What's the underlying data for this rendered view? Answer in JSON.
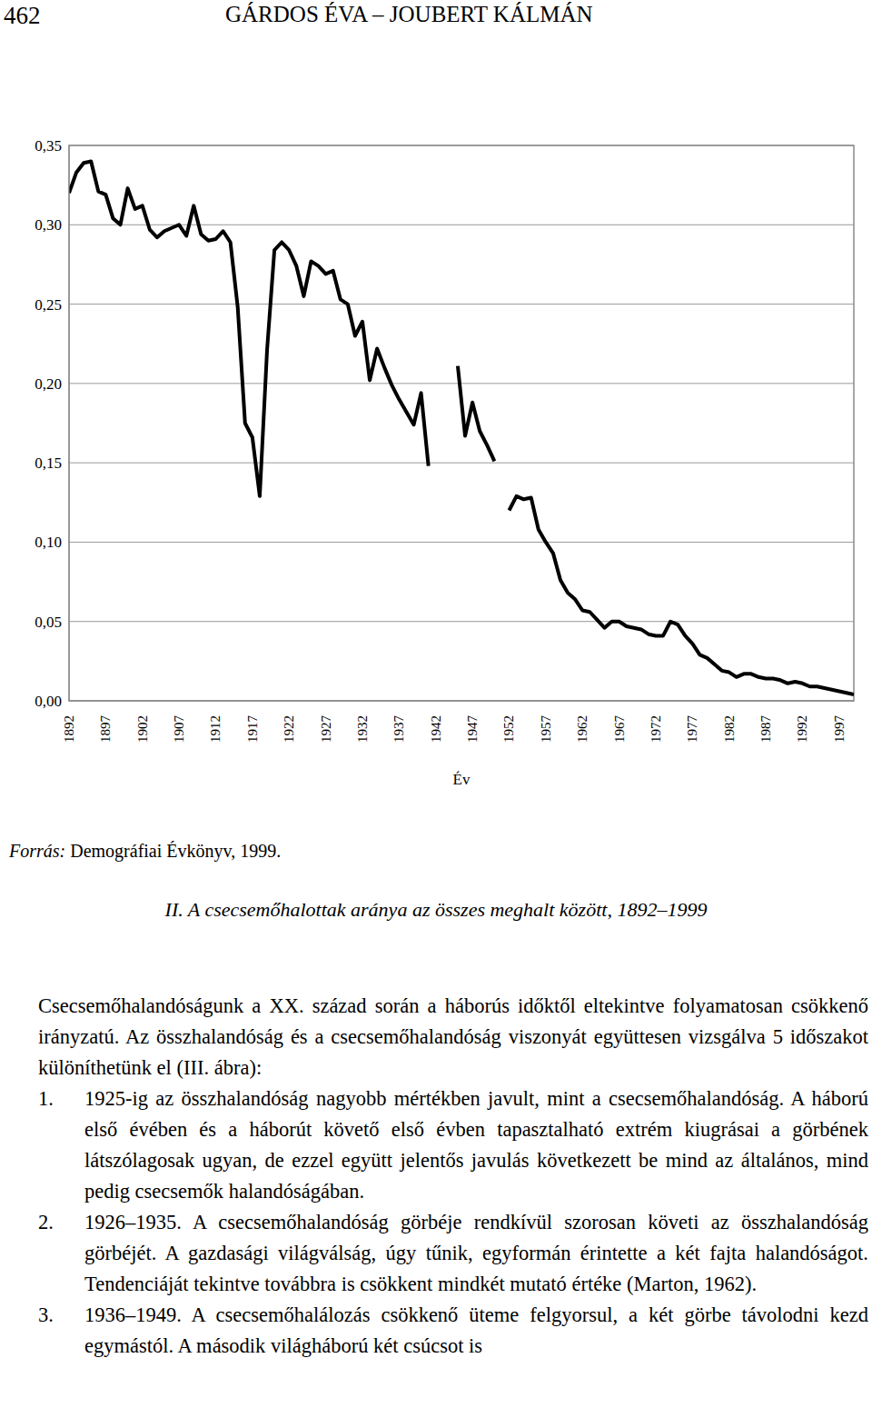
{
  "header": {
    "page": "462",
    "authors": "GÁRDOS ÉVA – JOUBERT KÁLMÁN"
  },
  "chart_data": {
    "type": "line",
    "xlabel": "Év",
    "color": "#000000",
    "grid": true,
    "xlim": [
      1892,
      1999
    ],
    "xticks": [
      1892,
      1897,
      1902,
      1907,
      1912,
      1917,
      1922,
      1927,
      1932,
      1937,
      1942,
      1947,
      1952,
      1957,
      1962,
      1967,
      1972,
      1977,
      1982,
      1987,
      1992,
      1997
    ],
    "ylim": [
      0,
      0.35
    ],
    "yticks": [
      {
        "value": 0,
        "label": "0,00"
      },
      {
        "value": 0.05,
        "label": "0,05"
      },
      {
        "value": 0.1,
        "label": "0,10"
      },
      {
        "value": 0.15,
        "label": "0,15"
      },
      {
        "value": 0.2,
        "label": "0,20"
      },
      {
        "value": 0.25,
        "label": "0,25"
      },
      {
        "value": 0.3,
        "label": "0,30"
      },
      {
        "value": 0.35,
        "label": "0,35"
      }
    ],
    "x": [
      1892,
      1893,
      1894,
      1895,
      1896,
      1897,
      1898,
      1899,
      1900,
      1901,
      1902,
      1903,
      1904,
      1905,
      1906,
      1907,
      1908,
      1909,
      1910,
      1911,
      1912,
      1913,
      1914,
      1915,
      1916,
      1917,
      1918,
      1919,
      1920,
      1921,
      1922,
      1923,
      1924,
      1925,
      1926,
      1927,
      1928,
      1929,
      1930,
      1931,
      1932,
      1933,
      1934,
      1935,
      1936,
      1937,
      1938,
      1939,
      1940,
      1941,
      1942,
      1943,
      1944,
      1945,
      1946,
      1947,
      1948,
      1949,
      1950,
      1951,
      1952,
      1953,
      1954,
      1955,
      1956,
      1957,
      1958,
      1959,
      1960,
      1961,
      1962,
      1963,
      1964,
      1965,
      1966,
      1967,
      1968,
      1969,
      1970,
      1971,
      1972,
      1973,
      1974,
      1975,
      1976,
      1977,
      1978,
      1979,
      1980,
      1981,
      1982,
      1983,
      1984,
      1985,
      1986,
      1987,
      1988,
      1989,
      1990,
      1991,
      1992,
      1993,
      1994,
      1995,
      1996,
      1997,
      1998,
      1999
    ],
    "values": [
      0.32,
      0.333,
      0.339,
      0.34,
      0.321,
      0.319,
      0.304,
      0.3,
      0.323,
      0.31,
      0.312,
      0.297,
      0.292,
      0.296,
      0.298,
      0.3,
      0.293,
      0.312,
      0.294,
      0.29,
      0.291,
      0.296,
      0.289,
      0.248,
      0.175,
      0.166,
      0.129,
      0.221,
      0.284,
      0.289,
      0.284,
      0.274,
      0.255,
      0.277,
      0.274,
      0.269,
      0.271,
      0.253,
      0.25,
      0.23,
      0.239,
      0.202,
      0.222,
      0.21,
      0.199,
      0.19,
      0.182,
      0.174,
      0.194,
      0.148,
      null,
      null,
      null,
      0.211,
      0.167,
      0.188,
      0.17,
      0.161,
      0.151,
      null,
      0.12,
      0.129,
      0.127,
      0.128,
      0.108,
      0.1,
      0.093,
      0.076,
      0.068,
      0.064,
      0.057,
      0.056,
      0.051,
      0.046,
      0.05,
      0.05,
      0.047,
      0.046,
      0.045,
      0.042,
      0.041,
      0.041,
      0.05,
      0.048,
      0.041,
      0.036,
      0.029,
      0.027,
      0.023,
      0.019,
      0.018,
      0.015,
      0.017,
      0.017,
      0.015,
      0.014,
      0.014,
      0.013,
      0.011,
      0.012,
      0.011,
      0.009,
      0.009,
      0.008,
      0.007,
      0.006,
      0.005,
      0.004
    ]
  },
  "source": {
    "label": "Forrás:",
    "text": "Demográfiai Évkönyv, 1999."
  },
  "caption": "II. A csecsemőhalottak aránya az összes meghalt között, 1892–1999",
  "body": {
    "intro": "Csecsemőhalandóságunk a XX. század során a háborús időktől eltekintve folyamatosan csökkenő irányzatú. Az összhalandóság és a csecsemőhalandóság viszonyát együttesen vizsgálva 5 időszakot különíthetünk el (III. ábra):",
    "items": [
      {
        "number": "1.",
        "text": "1925-ig az összhalandóság nagyobb mértékben javult, mint a csecsemőhalandóság. A háború első évében és a háborút követő első évben tapasztalható extrém kiugrásai a görbének látszólagosak ugyan, de ezzel együtt jelentős javulás következett be mind az általános, mind pedig csecsemők halandóságában."
      },
      {
        "number": "2.",
        "text": "1926–1935. A csecsemőhalandóság görbéje rendkívül szorosan követi az összhalandóság görbéjét. A gazdasági világválság, úgy tűnik, egyformán érintette a két fajta halandóságot. Tendenciáját tekintve továbbra is csökkent mindkét mutató értéke (Marton, 1962)."
      },
      {
        "number": "3.",
        "text": "1936–1949. A csecsemőhalálozás csökkenő üteme felgyorsul, a két görbe távolodni kezd egymástól. A második világháború két csúcsot is"
      }
    ]
  }
}
